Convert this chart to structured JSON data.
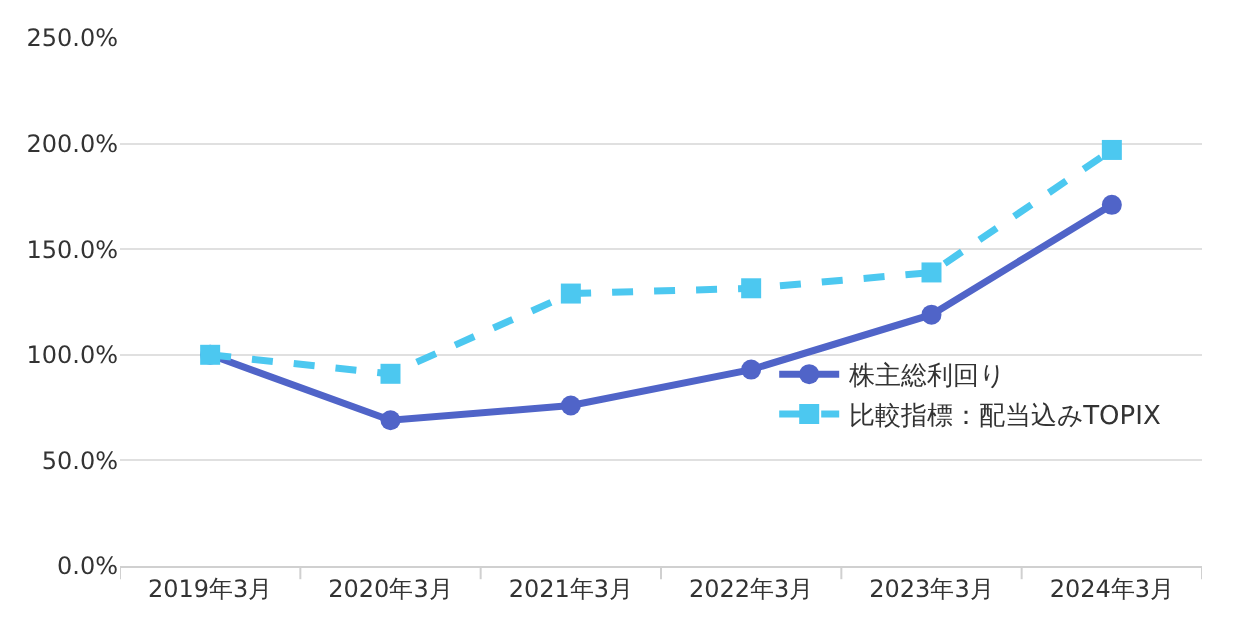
{
  "chart_data": {
    "type": "line",
    "categories": [
      "2019年3月",
      "2020年3月",
      "2021年3月",
      "2022年3月",
      "2023年3月",
      "2024年3月"
    ],
    "series": [
      {
        "name": "株主総利回り",
        "color": "#5064c8",
        "values": [
          100,
          69,
          76,
          93,
          119,
          171
        ],
        "marker": "circle",
        "line_style": "solid"
      },
      {
        "name": "比較指標：配当込みTOPIX",
        "color": "#4cc8f0",
        "values": [
          100,
          91,
          129,
          131.5,
          139,
          197
        ],
        "marker": "square",
        "line_style": "dashed"
      }
    ],
    "ylim": [
      0,
      250
    ],
    "yticks": [
      {
        "value": 0,
        "label": "0.0%"
      },
      {
        "value": 50,
        "label": "50.0%"
      },
      {
        "value": 100,
        "label": "100.0%"
      },
      {
        "value": 150,
        "label": "150.0%"
      },
      {
        "value": 200,
        "label": "200.0%"
      },
      {
        "value": 250,
        "label": "250.0%"
      }
    ],
    "grid": "y",
    "legend": "right"
  }
}
